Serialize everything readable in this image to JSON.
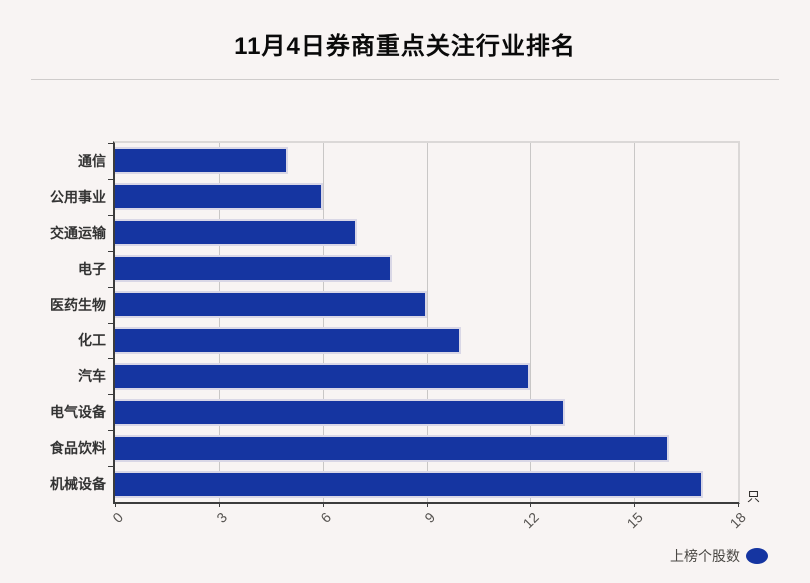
{
  "title": "11月4日券商重点关注行业排名",
  "chart_data": {
    "type": "bar",
    "orientation": "horizontal",
    "title": "11月4日券商重点关注行业排名",
    "categories": [
      "通信",
      "公用事业",
      "交通运输",
      "电子",
      "医药生物",
      "化工",
      "汽车",
      "电气设备",
      "食品饮料",
      "机械设备"
    ],
    "series": [
      {
        "name": "上榜个股数",
        "values": [
          5,
          6,
          7,
          8,
          9,
          10,
          12,
          13,
          16,
          17
        ]
      }
    ],
    "xlabel": "",
    "ylabel": "",
    "x_unit": "只",
    "x_ticks": [
      0,
      3,
      6,
      9,
      12,
      15,
      18
    ],
    "xlim": [
      0,
      18
    ],
    "grid": true,
    "legend_position": "bottom-right",
    "bar_color": "#1535a1"
  },
  "legend": {
    "label": "上榜个股数"
  },
  "colors": {
    "background": "#f8f4f3",
    "bar_fill": "#1535a1",
    "bar_border": "#d9d7e6",
    "gridline": "#c9c7c6",
    "spine_dark": "#3c3c3c",
    "spine_light": "#dbd8d7",
    "tick_label": "#565350",
    "category_label": "#333333",
    "title_color": "#0a0a0a",
    "legend_text": "#4a4844",
    "divider": "#cfcccb"
  }
}
